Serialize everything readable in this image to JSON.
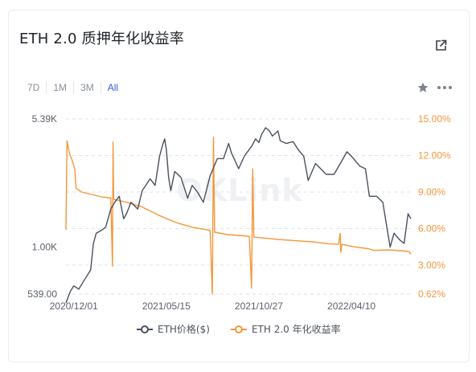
{
  "title": "ETH 2.0 质押年化收益率",
  "ranges": [
    "7D",
    "1M",
    "3M",
    "All"
  ],
  "active_range": "All",
  "watermark": "OKLink",
  "colors": {
    "price": "#4a5060",
    "apr": "#f5963a",
    "active": "#3b5bdb",
    "grid": "#dfe2e6"
  },
  "icons": {
    "external": "external-link-icon",
    "star": "star-icon",
    "more": "more-icon"
  },
  "chart_data": {
    "type": "line",
    "x_ticks": [
      "2020/12/01",
      "2021/05/15",
      "2021/10/27",
      "2022/04/10"
    ],
    "x_range": [
      "2020/11/17",
      "2022/07/25"
    ],
    "y_left": {
      "scale": "log",
      "ticks": [
        "5.39K",
        "1.00K",
        "539.00"
      ],
      "tick_values": [
        5390,
        1000,
        539
      ]
    },
    "y_right": {
      "ticks": [
        "15.00%",
        "12.00%",
        "9.00%",
        "6.00%",
        "3.00%",
        "0.62%"
      ],
      "tick_values": [
        15,
        12,
        9,
        6,
        3,
        0.62
      ],
      "range": [
        0.62,
        15
      ]
    },
    "series": [
      {
        "name": "ETH价格($)",
        "axis": "left",
        "points": [
          [
            "2020-11-17",
            480
          ],
          [
            "2020-11-25",
            560
          ],
          [
            "2020-12-01",
            600
          ],
          [
            "2020-12-10",
            575
          ],
          [
            "2020-12-20",
            650
          ],
          [
            "2020-12-31",
            740
          ],
          [
            "2021-01-05",
            1050
          ],
          [
            "2021-01-10",
            1200
          ],
          [
            "2021-01-20",
            1250
          ],
          [
            "2021-01-27",
            1300
          ],
          [
            "2021-02-05",
            1650
          ],
          [
            "2021-02-12",
            1800
          ],
          [
            "2021-02-20",
            1950
          ],
          [
            "2021-02-28",
            1450
          ],
          [
            "2021-03-05",
            1550
          ],
          [
            "2021-03-13",
            1800
          ],
          [
            "2021-03-25",
            1650
          ],
          [
            "2021-04-02",
            2100
          ],
          [
            "2021-04-16",
            2450
          ],
          [
            "2021-04-25",
            2250
          ],
          [
            "2021-05-03",
            3300
          ],
          [
            "2021-05-08",
            3800
          ],
          [
            "2021-05-12",
            4150
          ],
          [
            "2021-05-15",
            3600
          ],
          [
            "2021-05-19",
            2500
          ],
          [
            "2021-05-23",
            2100
          ],
          [
            "2021-05-30",
            2700
          ],
          [
            "2021-06-10",
            2500
          ],
          [
            "2021-06-22",
            1900
          ],
          [
            "2021-06-30",
            2250
          ],
          [
            "2021-07-10",
            2050
          ],
          [
            "2021-07-20",
            1800
          ],
          [
            "2021-08-01",
            2550
          ],
          [
            "2021-08-14",
            3200
          ],
          [
            "2021-08-25",
            3200
          ],
          [
            "2021-09-03",
            3900
          ],
          [
            "2021-09-08",
            3450
          ],
          [
            "2021-09-21",
            2800
          ],
          [
            "2021-10-01",
            3300
          ],
          [
            "2021-10-15",
            3800
          ],
          [
            "2021-10-21",
            4150
          ],
          [
            "2021-10-27",
            3950
          ],
          [
            "2021-11-01",
            4400
          ],
          [
            "2021-11-08",
            4800
          ],
          [
            "2021-11-15",
            4600
          ],
          [
            "2021-11-20",
            4300
          ],
          [
            "2021-11-30",
            4600
          ],
          [
            "2021-12-04",
            4050
          ],
          [
            "2021-12-15",
            3900
          ],
          [
            "2021-12-27",
            4000
          ],
          [
            "2022-01-05",
            3600
          ],
          [
            "2022-01-15",
            3300
          ],
          [
            "2022-01-23",
            2400
          ],
          [
            "2022-02-05",
            3000
          ],
          [
            "2022-02-24",
            2600
          ],
          [
            "2022-03-10",
            2600
          ],
          [
            "2022-03-25",
            3150
          ],
          [
            "2022-04-02",
            3500
          ],
          [
            "2022-04-10",
            3300
          ],
          [
            "2022-04-25",
            2900
          ],
          [
            "2022-05-05",
            2800
          ],
          [
            "2022-05-12",
            1950
          ],
          [
            "2022-05-25",
            1950
          ],
          [
            "2022-06-05",
            1800
          ],
          [
            "2022-06-13",
            1250
          ],
          [
            "2022-06-18",
            1000
          ],
          [
            "2022-06-25",
            1200
          ],
          [
            "2022-07-05",
            1100
          ],
          [
            "2022-07-13",
            1050
          ],
          [
            "2022-07-20",
            1550
          ],
          [
            "2022-07-25",
            1450
          ]
        ]
      },
      {
        "name": "ETH 2.0 年化收益率",
        "axis": "right",
        "points": [
          [
            "2020-11-17",
            5.9
          ],
          [
            "2020-11-19",
            13.2
          ],
          [
            "2020-11-23",
            12.2
          ],
          [
            "2020-11-28",
            11.6
          ],
          [
            "2020-12-03",
            10.8
          ],
          [
            "2020-12-05",
            9.3
          ],
          [
            "2020-12-15",
            9.0
          ],
          [
            "2021-01-01",
            8.8
          ],
          [
            "2021-01-20",
            8.6
          ],
          [
            "2021-02-05",
            8.5
          ],
          [
            "2021-02-08",
            2.9
          ],
          [
            "2021-02-09",
            13.1
          ],
          [
            "2021-02-10",
            8.4
          ],
          [
            "2021-03-01",
            8.2
          ],
          [
            "2021-04-01",
            7.8
          ],
          [
            "2021-05-01",
            7.1
          ],
          [
            "2021-06-01",
            6.5
          ],
          [
            "2021-07-01",
            6.1
          ],
          [
            "2021-08-01",
            5.85
          ],
          [
            "2021-08-05",
            0.62
          ],
          [
            "2021-08-07",
            13.5
          ],
          [
            "2021-08-09",
            5.7
          ],
          [
            "2021-09-01",
            5.5
          ],
          [
            "2021-10-01",
            5.4
          ],
          [
            "2021-10-10",
            5.35
          ],
          [
            "2021-10-14",
            1.1
          ],
          [
            "2021-10-16",
            10.9
          ],
          [
            "2021-10-18",
            5.3
          ],
          [
            "2021-12-01",
            5.1
          ],
          [
            "2022-01-01",
            5.0
          ],
          [
            "2022-02-01",
            4.9
          ],
          [
            "2022-03-01",
            4.75
          ],
          [
            "2022-03-18",
            4.7
          ],
          [
            "2022-03-21",
            5.6
          ],
          [
            "2022-03-22",
            4.05
          ],
          [
            "2022-03-24",
            4.7
          ],
          [
            "2022-04-15",
            4.5
          ],
          [
            "2022-05-10",
            4.35
          ],
          [
            "2022-05-20",
            4.2
          ],
          [
            "2022-06-15",
            4.25
          ],
          [
            "2022-07-15",
            4.15
          ],
          [
            "2022-07-22",
            4.1
          ],
          [
            "2022-07-25",
            3.9
          ]
        ]
      }
    ],
    "legend_position": "bottom-center",
    "grid": true
  }
}
